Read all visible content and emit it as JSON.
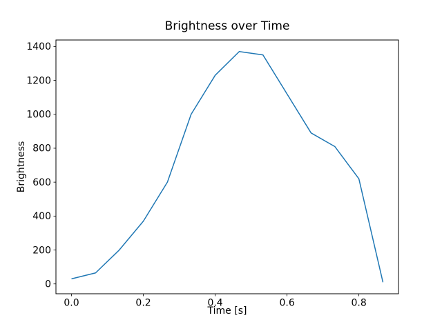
{
  "chart_data": {
    "type": "line",
    "title": "Brightness over Time",
    "xlabel": "Time [s]",
    "ylabel": "Brightness",
    "x": [
      0.0,
      0.067,
      0.133,
      0.2,
      0.267,
      0.333,
      0.4,
      0.467,
      0.533,
      0.6,
      0.667,
      0.733,
      0.8,
      0.867
    ],
    "y": [
      30,
      65,
      200,
      370,
      600,
      1000,
      1230,
      1370,
      1350,
      1120,
      890,
      810,
      620,
      10
    ],
    "xticks": [
      0.0,
      0.2,
      0.4,
      0.6,
      0.8
    ],
    "xtick_labels": [
      "0.0",
      "0.2",
      "0.4",
      "0.6",
      "0.8"
    ],
    "yticks": [
      0,
      200,
      400,
      600,
      800,
      1000,
      1200,
      1400
    ],
    "ytick_labels": [
      "0",
      "200",
      "400",
      "600",
      "800",
      "1000",
      "1200",
      "1400"
    ],
    "xlim": [
      -0.0433,
      0.9103
    ],
    "ylim": [
      -58,
      1438
    ],
    "grid": false,
    "legend": null,
    "line_color": "#1f77b4",
    "axis_color": "#000000",
    "background_color": "#ffffff"
  }
}
